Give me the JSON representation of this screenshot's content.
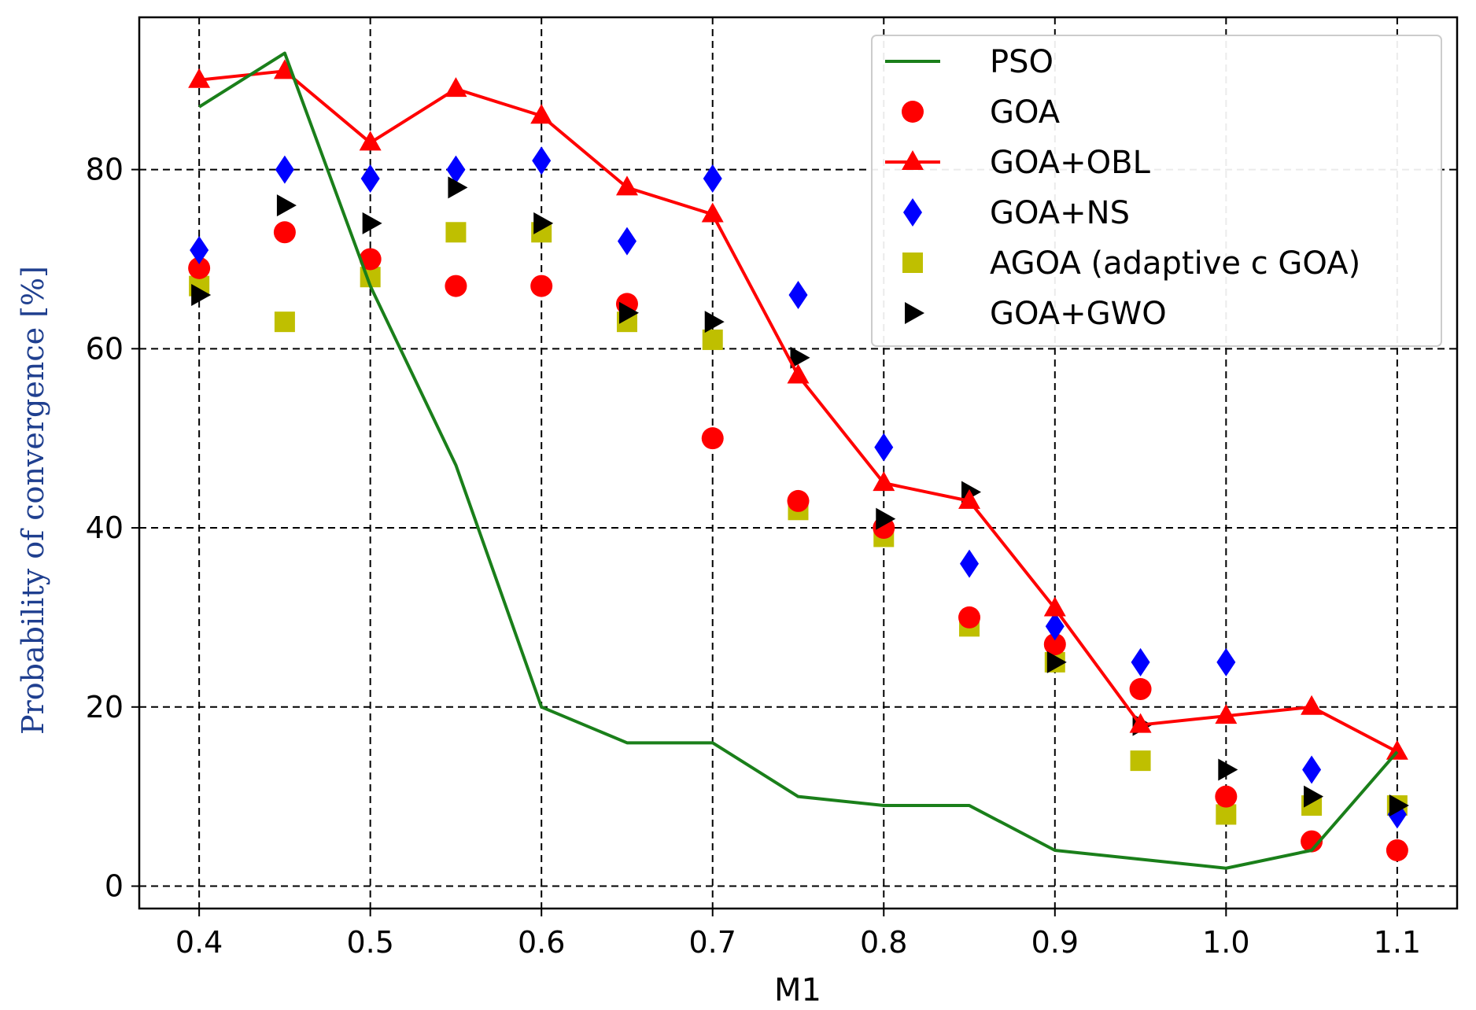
{
  "chart_data": {
    "type": "line",
    "title": "",
    "xlabel": "M1",
    "ylabel": "Probability of convergence [%]",
    "xlim": [
      0.365,
      1.135
    ],
    "ylim": [
      -2.5,
      97
    ],
    "grid": true,
    "legend_position": "top-right",
    "x_ticks": [
      0.4,
      0.5,
      0.6,
      0.7,
      0.8,
      0.9,
      1.0,
      1.1
    ],
    "x_tick_labels": [
      "0.4",
      "0.5",
      "0.6",
      "0.7",
      "0.8",
      "0.9",
      "1.0",
      "1.1"
    ],
    "y_ticks": [
      0,
      20,
      40,
      60,
      80
    ],
    "y_tick_labels": [
      "0",
      "20",
      "40",
      "60",
      "80"
    ],
    "x": [
      0.4,
      0.45,
      0.5,
      0.55,
      0.6,
      0.65,
      0.7,
      0.75,
      0.8,
      0.85,
      0.9,
      0.95,
      1.0,
      1.05,
      1.1
    ],
    "series": [
      {
        "name": "PSO",
        "style": "line",
        "marker": "none",
        "color": "#1a7f1a",
        "values": [
          87,
          93,
          67,
          47,
          20,
          16,
          16,
          10,
          9,
          9,
          4,
          3,
          2,
          4,
          15
        ]
      },
      {
        "name": "GOA",
        "style": "marker",
        "marker": "circle",
        "color": "#ff0000",
        "values": [
          69,
          73,
          70,
          67,
          67,
          65,
          50,
          43,
          40,
          30,
          27,
          22,
          10,
          5,
          4
        ]
      },
      {
        "name": "GOA+OBL",
        "style": "line+marker",
        "marker": "triangle-up",
        "color": "#ff0000",
        "values": [
          90,
          91,
          83,
          89,
          86,
          78,
          75,
          57,
          45,
          43,
          31,
          18,
          19,
          20,
          15
        ]
      },
      {
        "name": "GOA+NS",
        "style": "marker",
        "marker": "diamond",
        "color": "#0000ff",
        "values": [
          71,
          80,
          79,
          80,
          81,
          72,
          79,
          66,
          49,
          36,
          29,
          25,
          25,
          13,
          8
        ]
      },
      {
        "name": "AGOA (adaptive c GOA)",
        "style": "marker",
        "marker": "square",
        "color": "#bfbf00",
        "values": [
          67,
          63,
          68,
          73,
          73,
          63,
          61,
          42,
          39,
          29,
          25,
          14,
          8,
          9,
          9
        ]
      },
      {
        "name": "GOA+GWO",
        "style": "marker",
        "marker": "triangle-right",
        "color": "#000000",
        "values": [
          66,
          76,
          74,
          78,
          74,
          64,
          63,
          59,
          41,
          44,
          25,
          18,
          13,
          10,
          9
        ]
      }
    ]
  }
}
